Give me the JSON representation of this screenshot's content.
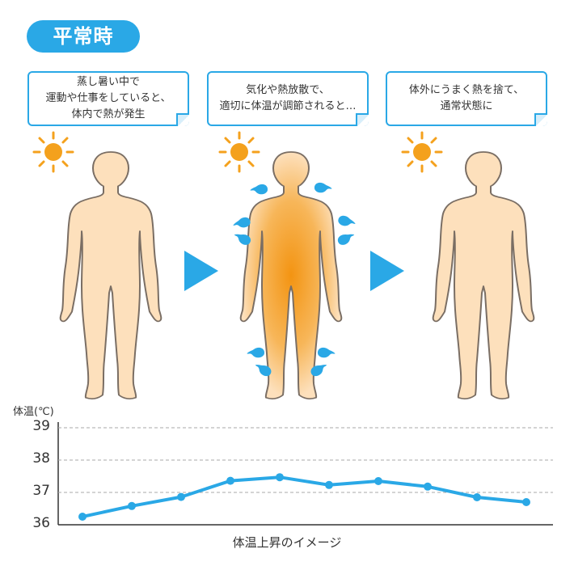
{
  "title": "平常時",
  "steps": [
    {
      "text": "蒸し暑い中で\n運動や仕事をしていると、\n体内で熱が発生"
    },
    {
      "text": "気化や熱放散で、\n適切に体温が調節されると…"
    },
    {
      "text": "体外にうまく熱を捨て、\n通常状態に"
    }
  ],
  "colors": {
    "accent": "#2aa8e6",
    "body": "#fde0bc",
    "outline": "#7a6e64",
    "heat": "#f49b1c",
    "sun": "#f4a11d"
  },
  "chart_data": {
    "type": "line",
    "ylabel": "体温(℃)",
    "xlabel": "体温上昇のイメージ",
    "yticks": [
      "39",
      "38",
      "37",
      "36"
    ],
    "ylim": [
      36,
      39
    ],
    "grid": true,
    "x": [
      1,
      2,
      3,
      4,
      5,
      6,
      7,
      8,
      9,
      10
    ],
    "values": [
      36.25,
      36.58,
      36.86,
      37.36,
      37.47,
      37.23,
      37.35,
      37.18,
      36.85,
      36.7
    ]
  }
}
